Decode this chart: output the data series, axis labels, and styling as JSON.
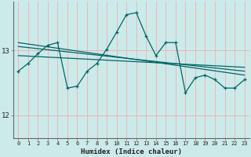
{
  "xlabel": "Humidex (Indice chaleur)",
  "bg_color": "#cceaea",
  "grid_color": "#e8b8b8",
  "line_color": "#006666",
  "yticks": [
    12,
    13
  ],
  "ylim": [
    11.65,
    13.75
  ],
  "xlim": [
    -0.5,
    23.5
  ],
  "series1_x": [
    0,
    1,
    2,
    3,
    4,
    5,
    6,
    7,
    8,
    9,
    10,
    11,
    12,
    13,
    14,
    15,
    16,
    17,
    18,
    19,
    20,
    21,
    22,
    23
  ],
  "series1_y": [
    12.68,
    12.8,
    12.95,
    13.08,
    13.12,
    12.42,
    12.45,
    12.68,
    12.8,
    13.02,
    13.28,
    13.55,
    13.58,
    13.22,
    12.92,
    13.12,
    13.12,
    12.35,
    12.58,
    12.62,
    12.55,
    12.42,
    12.42,
    12.55
  ],
  "series2_x": [
    0,
    23
  ],
  "series2_y": [
    13.12,
    12.62
  ],
  "series3_x": [
    0,
    23
  ],
  "series3_y": [
    13.06,
    12.68
  ],
  "series4_x": [
    0,
    23
  ],
  "series4_y": [
    12.92,
    12.74
  ],
  "xtick_labels": [
    "0",
    "1",
    "2",
    "3",
    "4",
    "5",
    "6",
    "7",
    "8",
    "9",
    "10",
    "11",
    "12",
    "13",
    "14",
    "15",
    "16",
    "17",
    "18",
    "19",
    "20",
    "21",
    "22",
    "23"
  ]
}
